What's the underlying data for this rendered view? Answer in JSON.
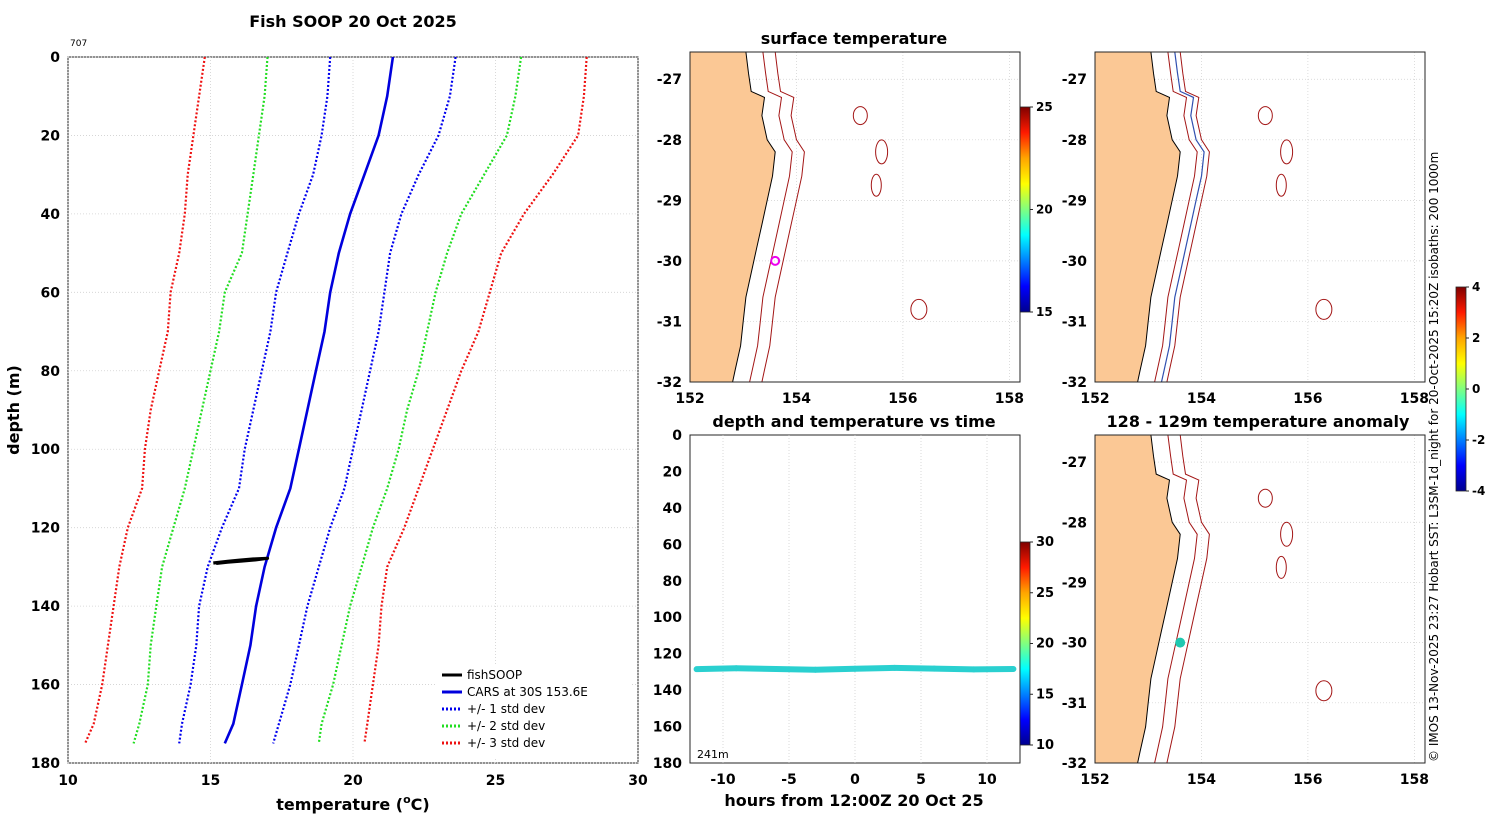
{
  "chart_data": [
    {
      "id": "profile",
      "type": "line",
      "title": "Fish SOOP 20 Oct 2025",
      "corner_label": "707",
      "xlabel": "temperature (",
      "xlabel_sup": "o",
      "xlabel_end": "C)",
      "ylabel": "depth (m)",
      "xlim": [
        10,
        30
      ],
      "ylim": [
        180,
        0
      ],
      "x_ticks": [
        "10",
        "15",
        "20",
        "25",
        "30"
      ],
      "y_ticks": [
        "0",
        "20",
        "40",
        "60",
        "80",
        "100",
        "120",
        "140",
        "160",
        "180"
      ],
      "legend": [
        "fishSOOP",
        "CARS at 30S 153.6E",
        "+/- 1 std dev",
        "+/- 2 std dev",
        "+/- 3 std dev"
      ],
      "legend_position": "bottom-right",
      "depths": [
        0,
        10,
        20,
        30,
        40,
        50,
        60,
        70,
        80,
        90,
        100,
        110,
        120,
        130,
        140,
        150,
        160,
        170,
        175
      ],
      "cars_mean": [
        21.4,
        21.2,
        20.9,
        20.4,
        19.9,
        19.5,
        19.2,
        19.0,
        18.7,
        18.4,
        18.1,
        17.8,
        17.3,
        16.9,
        16.6,
        16.4,
        16.1,
        15.8,
        15.5
      ],
      "std1_lo": [
        19.2,
        19.1,
        18.9,
        18.6,
        18.1,
        17.7,
        17.3,
        17.1,
        16.8,
        16.5,
        16.2,
        16.0,
        15.4,
        14.9,
        14.6,
        14.5,
        14.3,
        14.0,
        13.9
      ],
      "std1_hi": [
        23.6,
        23.4,
        23.0,
        22.3,
        21.7,
        21.3,
        21.1,
        20.9,
        20.6,
        20.3,
        20.0,
        19.7,
        19.2,
        18.8,
        18.4,
        18.1,
        17.8,
        17.4,
        17.2
      ],
      "std2_lo": [
        17.0,
        16.9,
        16.7,
        16.5,
        16.3,
        16.1,
        15.5,
        15.3,
        15.0,
        14.7,
        14.4,
        14.1,
        13.7,
        13.3,
        13.1,
        12.9,
        12.8,
        12.5,
        12.3
      ],
      "std2_hi": [
        25.9,
        25.7,
        25.4,
        24.6,
        23.8,
        23.3,
        22.9,
        22.6,
        22.3,
        21.9,
        21.6,
        21.2,
        20.7,
        20.3,
        19.9,
        19.6,
        19.3,
        18.9,
        18.8
      ],
      "std3_lo": [
        14.8,
        14.6,
        14.4,
        14.2,
        14.1,
        13.9,
        13.6,
        13.5,
        13.2,
        12.9,
        12.7,
        12.6,
        12.1,
        11.8,
        11.6,
        11.4,
        11.2,
        10.9,
        10.6
      ],
      "std3_hi": [
        28.2,
        28.1,
        27.9,
        27.0,
        26.0,
        25.2,
        24.8,
        24.4,
        23.8,
        23.3,
        22.8,
        22.3,
        21.8,
        21.2,
        21.0,
        20.9,
        20.7,
        20.5,
        20.4
      ],
      "fishsoop": {
        "temps": [
          15.1,
          15.6,
          16.0,
          16.5,
          17.0,
          16.6,
          16.1,
          15.6,
          15.2
        ],
        "depths": [
          129,
          128.6,
          128.3,
          128.0,
          127.8,
          128.2,
          128.5,
          128.8,
          129.1
        ]
      }
    },
    {
      "id": "time_series",
      "type": "scatter",
      "title": "depth and temperature vs time",
      "xlabel": "hours from 12:00Z 20 Oct 25",
      "xlim": [
        -12.5,
        12.5
      ],
      "ylim": [
        180,
        0
      ],
      "x_ticks": [
        "-10",
        "-5",
        "0",
        "5",
        "10"
      ],
      "y_ticks": [
        "0",
        "20",
        "40",
        "60",
        "80",
        "100",
        "120",
        "140",
        "160",
        "180"
      ],
      "annotation": "241m",
      "depth_series": {
        "hours": [
          -12,
          -9,
          -6,
          -3,
          0,
          3,
          6,
          9,
          12
        ],
        "depth": [
          128.5,
          128,
          128.4,
          128.8,
          128.3,
          127.8,
          128.2,
          128.6,
          128.4
        ],
        "temp": 16.5
      },
      "colorbar": {
        "min": 10,
        "max": 30,
        "ticks": [
          "10",
          "15",
          "20",
          "25",
          "30"
        ]
      }
    },
    {
      "id": "map_surface",
      "type": "map",
      "title": "surface temperature",
      "x_ticks": [
        "152",
        "154",
        "156",
        "158"
      ],
      "y_ticks": [
        "-27",
        "-28",
        "-29",
        "-30",
        "-31",
        "-32"
      ],
      "marker": {
        "lon": 153.6,
        "lat": -30.0
      },
      "colorbar": {
        "min": 15,
        "max": 25,
        "ticks": [
          "15",
          "20",
          "25"
        ]
      }
    },
    {
      "id": "map_track",
      "type": "map",
      "title": "",
      "x_ticks": [
        "152",
        "154",
        "156",
        "158"
      ],
      "y_ticks": [
        "-27",
        "-28",
        "-29",
        "-30",
        "-31",
        "-32"
      ]
    },
    {
      "id": "map_anomaly",
      "type": "map",
      "title": "128 - 129m temperature anomaly",
      "x_ticks": [
        "152",
        "154",
        "156",
        "158"
      ],
      "y_ticks": [
        "-27",
        "-28",
        "-29",
        "-30",
        "-31",
        "-32"
      ],
      "marker": {
        "lon": 153.6,
        "lat": -30.0
      },
      "colorbar": {
        "min": -4,
        "max": 4,
        "ticks": [
          "-4",
          "-2",
          "0",
          "2",
          "4"
        ]
      }
    }
  ],
  "side_caption": "© IMOS 13-Nov-2025 23:27 Hobart SST: L3SM-1d_night for 20-Oct-2025 15:20Z isobaths: 200  1000m",
  "colors": {
    "fishsoop": "#000000",
    "cars": "#0000dd",
    "std1": "#0000ee",
    "std2": "#22dd22",
    "std3": "#ee1111",
    "land": "#fbc895",
    "isobath": "#a31515",
    "track": "#3050b0",
    "marker_surface": "#ee00ee",
    "marker_anomaly": "#20c8b0"
  }
}
